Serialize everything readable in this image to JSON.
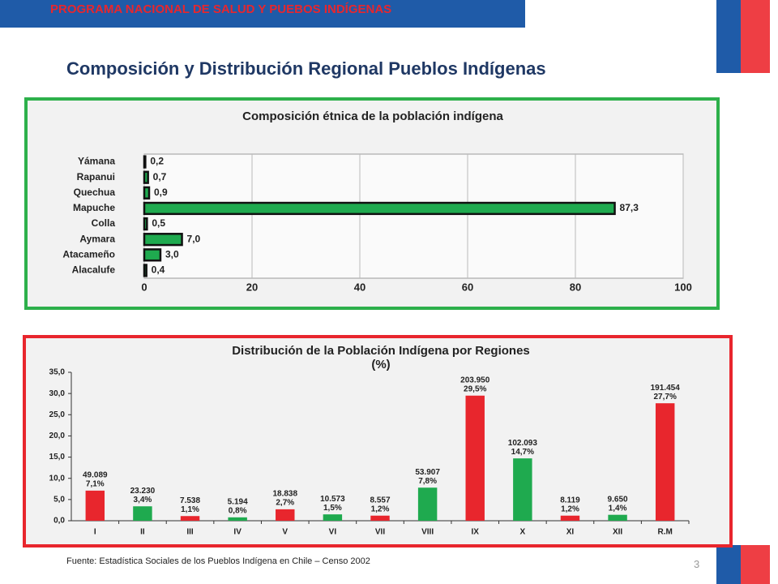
{
  "header": {
    "banner": "PROGRAMA NACIONAL DE SALUD Y PUEBOS INDÍGENAS",
    "title": "Composición y Distribución Regional Pueblos Indígenas"
  },
  "chart_data": [
    {
      "type": "bar",
      "orientation": "horizontal",
      "title": "Composición étnica de la población indígena",
      "categories": [
        "Yámana",
        "Rapanui",
        "Quechua",
        "Mapuche",
        "Colla",
        "Aymara",
        "Atacameño",
        "Alacalufe"
      ],
      "values": [
        0.2,
        0.7,
        0.9,
        87.3,
        0.5,
        7.0,
        3.0,
        0.4
      ],
      "value_labels": [
        "0,2",
        "0,7",
        "0,9",
        "87,3",
        "0,5",
        "7,0",
        "3,0",
        "0,4"
      ],
      "color": "#1faa4f",
      "xlim": [
        0,
        100
      ],
      "xticks": [
        0,
        20,
        40,
        60,
        80,
        100
      ],
      "grid": true
    },
    {
      "type": "bar",
      "orientation": "vertical",
      "title": "Distribución de la Población Indígena por Regiones",
      "subtitle": "(%)",
      "categories": [
        "I",
        "II",
        "III",
        "IV",
        "V",
        "VI",
        "VII",
        "VIII",
        "IX",
        "X",
        "XI",
        "XII",
        "R.M"
      ],
      "values": [
        7.1,
        3.4,
        1.1,
        0.8,
        2.7,
        1.5,
        1.2,
        7.8,
        29.5,
        14.7,
        1.2,
        1.4,
        27.7
      ],
      "value_labels": [
        "7,1%",
        "3,4%",
        "1,1%",
        "0,8%",
        "2,7%",
        "1,5%",
        "1,2%",
        "7,8%",
        "29,5%",
        "14,7%",
        "1,2%",
        "1,4%",
        "27,7%"
      ],
      "counts": [
        49089,
        23230,
        7538,
        5194,
        18838,
        10573,
        8557,
        53907,
        203950,
        102093,
        8119,
        9650,
        191454
      ],
      "count_labels": [
        "49.089",
        "23.230",
        "7.538",
        "5.194",
        "18.838",
        "10.573",
        "8.557",
        "53.907",
        "203.950",
        "102.093",
        "8.119",
        "9.650",
        "191.454"
      ],
      "colors": [
        "#e8262d",
        "#1faa4f",
        "#e8262d",
        "#1faa4f",
        "#e8262d",
        "#1faa4f",
        "#e8262d",
        "#1faa4f",
        "#e8262d",
        "#1faa4f",
        "#e8262d",
        "#1faa4f",
        "#e8262d"
      ],
      "ylim": [
        0,
        35
      ],
      "yticks": [
        {
          "value": 0,
          "label": "0,0"
        },
        {
          "value": 5,
          "label": "5,0"
        },
        {
          "value": 10,
          "label": "10,0"
        },
        {
          "value": 15,
          "label": "15,0"
        },
        {
          "value": 20,
          "label": "20,0"
        },
        {
          "value": 25,
          "label": "25,0"
        },
        {
          "value": 30,
          "label": "30,0"
        },
        {
          "value": 35,
          "label": "35,0"
        }
      ],
      "grid": false
    }
  ],
  "footer": {
    "source": "Fuente: Estadística Sociales de los Pueblos Indígena en Chile – Censo 2002",
    "page": "3"
  }
}
